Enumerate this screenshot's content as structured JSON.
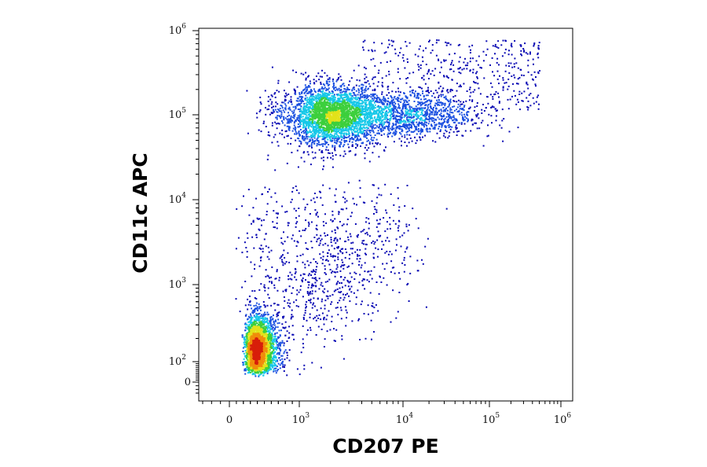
{
  "chart_data": {
    "type": "scatter",
    "subtype": "flow-cytometry-density-dot-plot",
    "xlabel": "CD207 PE",
    "ylabel": "CD11c APC",
    "x_scale": "biexponential",
    "y_scale": "biexponential",
    "xlim": [
      -300,
      1000000
    ],
    "ylim": [
      -30,
      1000000
    ],
    "grid": false,
    "legend": "none",
    "x_ticks": [
      {
        "value": 0,
        "base": "0",
        "exp": ""
      },
      {
        "value": 1000,
        "base": "10",
        "exp": "3"
      },
      {
        "value": 10000,
        "base": "10",
        "exp": "4"
      },
      {
        "value": 100000,
        "base": "10",
        "exp": "5"
      },
      {
        "value": 1000000,
        "base": "10",
        "exp": "6"
      }
    ],
    "y_ticks": [
      {
        "value": 0,
        "base": "0",
        "exp": ""
      },
      {
        "value": 100,
        "base": "10",
        "exp": "2"
      },
      {
        "value": 1000,
        "base": "10",
        "exp": "3"
      },
      {
        "value": 10000,
        "base": "10",
        "exp": "4"
      },
      {
        "value": 100000,
        "base": "10",
        "exp": "5"
      },
      {
        "value": 1000000,
        "base": "10",
        "exp": "6"
      }
    ],
    "density_colors": [
      "#0a0ab4",
      "#1a4fe0",
      "#16c8e8",
      "#3ccf3c",
      "#e2e21a",
      "#f08c0a",
      "#d81e0a"
    ],
    "populations": [
      {
        "center_x": 2000,
        "center_y": 100000,
        "spread_x_decades": 0.22,
        "spread_y_decades": 0.18,
        "density": "high"
      },
      {
        "center_x": 8000,
        "center_y": 100000,
        "spread_x_decades": 0.45,
        "spread_y_decades": 0.14,
        "density": "medium"
      },
      {
        "center_x": 400,
        "center_y": 150,
        "spread_x_decades": 0.12,
        "spread_y_decades": 0.2,
        "density": "high"
      },
      {
        "center_x": 1500,
        "center_y": 2000,
        "spread_x_decades": 0.4,
        "spread_y_decades": 0.5,
        "density": "low"
      }
    ]
  }
}
